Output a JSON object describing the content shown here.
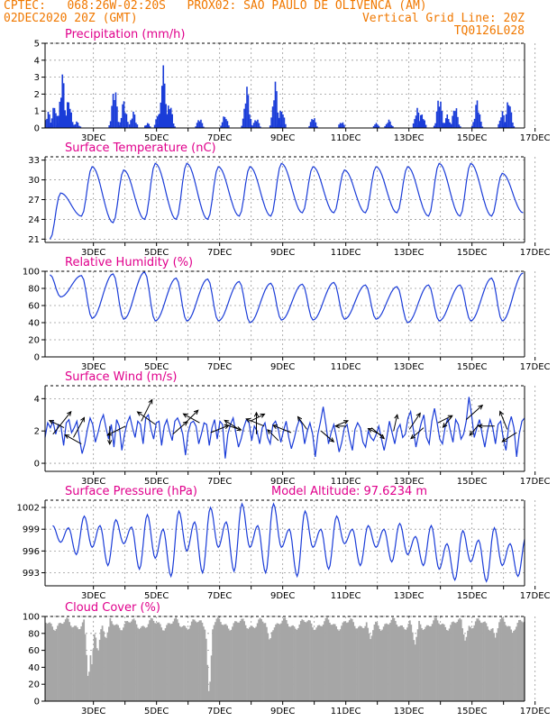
{
  "header": {
    "line1": "CPTEC:   068:26W-02:20S   PROX02: SAO PAULO DE OLIVENCA (AM)",
    "line2": "02DEC2020 20Z (GMT)",
    "grid_note": "Vertical Grid Line: 20Z",
    "code": "TQ0126L028",
    "text_color": "#f07800"
  },
  "colors": {
    "title": "#e0008c",
    "series": "#1a3cd8",
    "cloud": "#a6a6a6",
    "grid": "#999999"
  },
  "chart_data": [
    {
      "type": "bar",
      "title": "Precipitation (mm/h)",
      "ylim": [
        0,
        5
      ],
      "yticks": [
        0,
        1,
        2,
        3,
        4,
        5
      ],
      "xticks": [
        "3DEC",
        "5DEC",
        "7DEC",
        "9DEC",
        "11DEC",
        "13DEC",
        "15DEC",
        "17DEC"
      ],
      "x_start_day": 2.83,
      "x_end_day": 17.83,
      "peaks": [
        [
          2.4,
          1.0
        ],
        [
          2.6,
          1.4
        ],
        [
          2.85,
          3.3
        ],
        [
          3.05,
          1.8
        ],
        [
          3.3,
          0.4
        ],
        [
          4.5,
          2.6
        ],
        [
          4.8,
          1.7
        ],
        [
          5.1,
          1.0
        ],
        [
          5.55,
          0.3
        ],
        [
          5.9,
          1.0
        ],
        [
          6.05,
          3.7
        ],
        [
          6.25,
          1.6
        ],
        [
          7.2,
          0.6
        ],
        [
          8.0,
          0.8
        ],
        [
          8.7,
          2.5
        ],
        [
          9.0,
          0.6
        ],
        [
          9.6,
          2.8
        ],
        [
          9.8,
          1.2
        ],
        [
          10.8,
          0.7
        ],
        [
          11.7,
          0.4
        ],
        [
          12.8,
          0.3
        ],
        [
          13.2,
          0.5
        ],
        [
          14.1,
          1.2
        ],
        [
          14.25,
          0.9
        ],
        [
          14.8,
          2.0
        ],
        [
          15.05,
          0.8
        ],
        [
          15.3,
          1.4
        ],
        [
          16.0,
          1.7
        ],
        [
          16.8,
          1.0
        ],
        [
          17.0,
          1.8
        ]
      ]
    },
    {
      "type": "line",
      "title": "Surface Temperature (nC)",
      "ylim": [
        20.5,
        33.5
      ],
      "yticks": [
        21,
        24,
        27,
        30,
        33
      ],
      "xticks": [
        "3DEC",
        "5DEC",
        "7DEC",
        "9DEC",
        "11DEC",
        "13DEC",
        "15DEC",
        "17DEC"
      ],
      "daily": [
        {
          "max": 28.0,
          "min": 21.0
        },
        {
          "max": 32.0,
          "min": 24.5
        },
        {
          "max": 31.5,
          "min": 23.5
        },
        {
          "max": 32.5,
          "min": 24.0
        },
        {
          "max": 32.5,
          "min": 24.0
        },
        {
          "max": 32.0,
          "min": 24.0
        },
        {
          "max": 32.0,
          "min": 24.5
        },
        {
          "max": 32.5,
          "min": 24.5
        },
        {
          "max": 32.0,
          "min": 25.0
        },
        {
          "max": 31.5,
          "min": 25.0
        },
        {
          "max": 32.0,
          "min": 25.0
        },
        {
          "max": 32.0,
          "min": 25.0
        },
        {
          "max": 32.5,
          "min": 24.5
        },
        {
          "max": 32.5,
          "min": 24.5
        },
        {
          "max": 31.0,
          "min": 24.5
        },
        {
          "max": 30.0,
          "min": 25.0
        }
      ]
    },
    {
      "type": "line",
      "title": "Relative Humidity (%)",
      "ylim": [
        0,
        100
      ],
      "yticks": [
        0,
        20,
        40,
        60,
        80,
        100
      ],
      "xticks": [
        "3DEC",
        "5DEC",
        "7DEC",
        "9DEC",
        "11DEC",
        "13DEC",
        "15DEC",
        "17DEC"
      ],
      "daily": [
        {
          "max": 96,
          "min": 70
        },
        {
          "max": 95,
          "min": 45
        },
        {
          "max": 97,
          "min": 44
        },
        {
          "max": 99,
          "min": 42
        },
        {
          "max": 92,
          "min": 42
        },
        {
          "max": 91,
          "min": 42
        },
        {
          "max": 88,
          "min": 40
        },
        {
          "max": 86,
          "min": 43
        },
        {
          "max": 85,
          "min": 43
        },
        {
          "max": 87,
          "min": 44
        },
        {
          "max": 84,
          "min": 44
        },
        {
          "max": 82,
          "min": 40
        },
        {
          "max": 84,
          "min": 42
        },
        {
          "max": 84,
          "min": 42
        },
        {
          "max": 92,
          "min": 42
        },
        {
          "max": 98,
          "min": 44
        }
      ]
    },
    {
      "type": "line",
      "title": "Surface Wind (m/s)",
      "ylim": [
        -0.5,
        4.8
      ],
      "yticks": [
        0,
        2,
        4
      ],
      "xticks": [
        "3DEC",
        "5DEC",
        "7DEC",
        "9DEC",
        "11DEC",
        "13DEC",
        "15DEC",
        "17DEC"
      ],
      "speed_samples": [
        1.6,
        2.5,
        2.2,
        2.6,
        1.8,
        2.4,
        2.3,
        1.1,
        2.5,
        2.7,
        1.9,
        2.2,
        2.6,
        1.5,
        0.6,
        1.2,
        2.1,
        2.8,
        2.4,
        1.3,
        1.9,
        2.6,
        3.0,
        2.2,
        1.5,
        2.4,
        1.0,
        2.7,
        2.3,
        0.8,
        1.8,
        2.5,
        2.9,
        2.2,
        1.6,
        2.6,
        2.4,
        1.2,
        2.8,
        3.0,
        2.1,
        1.5,
        2.5,
        2.6,
        1.1,
        2.3,
        2.7,
        2.0,
        1.4,
        2.6,
        2.8,
        2.4,
        1.8,
        0.5,
        1.9,
        2.5,
        2.6,
        2.3,
        1.2,
        1.8,
        2.5,
        2.4,
        1.1,
        2.2,
        2.7,
        1.5,
        2.6,
        2.4,
        0.3,
        1.8,
        2.4,
        2.8,
        1.9,
        1.0,
        1.5,
        2.2,
        2.7,
        2.5,
        1.4,
        2.3,
        2.0,
        1.2,
        2.2,
        2.5,
        1.6,
        1.2,
        2.4,
        2.6,
        2.1,
        1.3,
        2.0,
        2.6,
        1.6,
        0.9,
        1.5,
        2.2,
        2.7,
        2.4,
        1.2,
        2.0,
        2.5,
        1.8,
        0.4,
        1.8,
        2.6,
        3.5,
        2.4,
        1.2,
        1.9,
        2.4,
        1.6,
        0.7,
        1.3,
        2.2,
        2.4,
        1.5,
        0.8,
        2.1,
        2.5,
        2.2,
        1.3,
        1.0,
        2.0,
        1.6,
        1.4,
        1.8,
        2.3,
        1.5,
        0.8,
        1.6,
        2.6,
        1.9,
        1.2,
        2.1,
        2.4,
        1.6,
        1.8,
        2.8,
        3.2,
        2.1,
        1.0,
        1.8,
        2.5,
        3.0,
        1.6,
        1.2,
        2.6,
        3.4,
        2.5,
        1.5,
        1.2,
        2.2,
        2.8,
        2.0,
        1.3,
        2.7,
        2.4,
        1.5,
        1.8,
        2.6,
        4.1,
        3.0,
        1.6,
        2.2,
        2.7,
        1.8,
        1.0,
        2.0,
        2.7,
        2.2,
        1.2,
        2.4,
        2.6,
        1.5,
        0.8,
        2.3,
        2.9,
        2.2,
        0.4,
        1.8,
        2.6,
        2.8
      ],
      "arrows": [
        [
          2.55,
          1.8,
          20,
          -25
        ],
        [
          2.9,
          2.2,
          -16,
          -8
        ],
        [
          3.2,
          1.6,
          12,
          -22
        ],
        [
          3.45,
          1.2,
          -18,
          -10
        ],
        [
          4.35,
          2.3,
          0,
          20
        ],
        [
          4.85,
          2.3,
          -20,
          10
        ],
        [
          5.35,
          2.6,
          12,
          -24
        ],
        [
          5.8,
          2.4,
          -20,
          -14
        ],
        [
          6.35,
          1.8,
          16,
          -14
        ],
        [
          6.75,
          2.5,
          14,
          -14
        ],
        [
          7.2,
          2.5,
          -18,
          -10
        ],
        [
          7.55,
          1.9,
          20,
          -8
        ],
        [
          8.0,
          2.4,
          18,
          6
        ],
        [
          8.45,
          2.1,
          -16,
          -10
        ],
        [
          8.8,
          2.6,
          16,
          -8
        ],
        [
          9.0,
          1.8,
          0,
          -24
        ],
        [
          9.25,
          2.3,
          -20,
          -8
        ],
        [
          9.7,
          1.4,
          -12,
          -12
        ],
        [
          10.1,
          1.9,
          -20,
          -8
        ],
        [
          10.6,
          2.1,
          -10,
          -14
        ],
        [
          11.05,
          2.0,
          14,
          12
        ],
        [
          11.5,
          2.3,
          14,
          -6
        ],
        [
          11.85,
          2.3,
          -12,
          0
        ],
        [
          12.65,
          2.2,
          14,
          12
        ],
        [
          13.0,
          1.7,
          -16,
          -8
        ],
        [
          13.35,
          2.0,
          4,
          -18
        ],
        [
          13.85,
          2.1,
          12,
          -18
        ],
        [
          14.3,
          2.2,
          -14,
          12
        ],
        [
          14.75,
          2.5,
          16,
          -8
        ],
        [
          15.2,
          2.9,
          -10,
          12
        ],
        [
          15.65,
          2.7,
          18,
          -16
        ],
        [
          16.05,
          2.4,
          -10,
          12
        ],
        [
          16.55,
          2.3,
          -18,
          0
        ],
        [
          16.95,
          2.1,
          -8,
          -20
        ],
        [
          17.25,
          1.9,
          -16,
          10
        ]
      ]
    },
    {
      "type": "line",
      "title": "Surface Pressure (hPa)",
      "annotation": "Model Altitude: 97.6234 m",
      "ylim": [
        991.2,
        1003.0
      ],
      "yticks": [
        993,
        996,
        999,
        1002
      ],
      "xticks": [
        "3DEC",
        "5DEC",
        "7DEC",
        "9DEC",
        "11DEC",
        "13DEC",
        "15DEC",
        "17DEC"
      ],
      "daily": [
        {
          "max1": 999.5,
          "min1": 997.2,
          "max2": 999.2,
          "min2": 995.5
        },
        {
          "max1": 1000.8,
          "min1": 996.5,
          "max2": 999.5,
          "min2": 994.0
        },
        {
          "max1": 1000.3,
          "min1": 997.0,
          "max2": 999.3,
          "min2": 993.5
        },
        {
          "max1": 1001.0,
          "min1": 995.0,
          "max2": 999.0,
          "min2": 992.5
        },
        {
          "max1": 1001.5,
          "min1": 996.0,
          "max2": 1000.0,
          "min2": 993.0
        },
        {
          "max1": 1002.0,
          "min1": 996.5,
          "max2": 1000.0,
          "min2": 993.2
        },
        {
          "max1": 1002.5,
          "min1": 996.5,
          "max2": 999.5,
          "min2": 993.0
        },
        {
          "max1": 1002.5,
          "min1": 996.5,
          "max2": 999.0,
          "min2": 992.5
        },
        {
          "max1": 1001.5,
          "min1": 996.5,
          "max2": 999.0,
          "min2": 993.5
        },
        {
          "max1": 1000.8,
          "min1": 997.0,
          "max2": 999.0,
          "min2": 994.0
        },
        {
          "max1": 999.5,
          "min1": 996.5,
          "max2": 999.0,
          "min2": 994.5
        },
        {
          "max1": 999.8,
          "min1": 995.5,
          "max2": 998.0,
          "min2": 994.0
        },
        {
          "max1": 999.5,
          "min1": 993.5,
          "max2": 997.0,
          "min2": 992.0
        },
        {
          "max1": 998.8,
          "min1": 994.5,
          "max2": 997.5,
          "min2": 991.8
        },
        {
          "max1": 999.2,
          "min1": 994.0,
          "max2": 997.0,
          "min2": 992.5
        },
        {
          "max1": 998.0,
          "min1": 993.5,
          "max2": 996.5,
          "min2": 992.2
        }
      ]
    },
    {
      "type": "bar",
      "title": "Cloud Cover (%)",
      "ylim": [
        0,
        100
      ],
      "yticks": [
        0,
        20,
        40,
        60,
        80,
        100
      ],
      "xticks": [
        "3DEC",
        "5DEC",
        "7DEC",
        "9DEC",
        "11DEC",
        "13DEC",
        "15DEC",
        "17DEC"
      ],
      "base_level": 91,
      "dips": [
        [
          3.65,
          20
        ],
        [
          3.75,
          40
        ],
        [
          3.95,
          55
        ],
        [
          4.2,
          72
        ],
        [
          7.48,
          2
        ],
        [
          9.4,
          70
        ],
        [
          12.6,
          72
        ],
        [
          14.0,
          65
        ],
        [
          15.6,
          70
        ],
        [
          16.55,
          75
        ],
        [
          17.1,
          80
        ]
      ]
    }
  ]
}
